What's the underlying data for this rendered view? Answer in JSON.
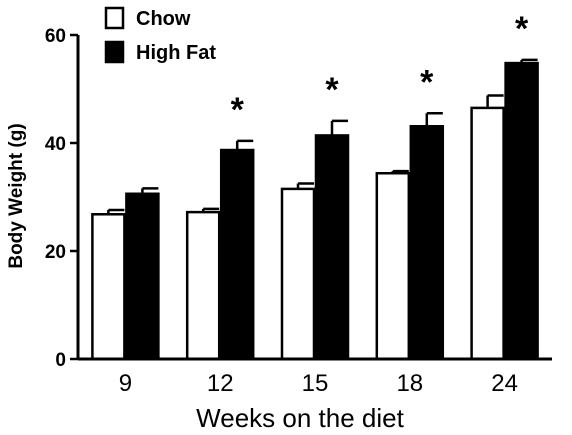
{
  "chart_data": {
    "type": "bar",
    "title": "",
    "xlabel": "Weeks on the diet",
    "ylabel": "Body Weight (g)",
    "categories": [
      "9",
      "12",
      "15",
      "18",
      "24"
    ],
    "ylim": [
      0,
      60
    ],
    "yticks": [
      0,
      20,
      40,
      60
    ],
    "grid": false,
    "legend_position": "top-left",
    "series": [
      {
        "name": "Chow",
        "color": "#ffffff",
        "values": [
          26.8,
          27.2,
          31.5,
          34.4,
          46.5
        ],
        "errors": [
          0.8,
          0.6,
          1.0,
          0.4,
          2.3
        ]
      },
      {
        "name": "High Fat",
        "color": "#000000",
        "values": [
          30.6,
          38.7,
          41.4,
          43.1,
          54.8
        ],
        "errors": [
          1.0,
          1.7,
          2.7,
          2.4,
          0.6
        ]
      }
    ],
    "annotations": [
      "",
      "*",
      "*",
      "*",
      "*"
    ]
  }
}
